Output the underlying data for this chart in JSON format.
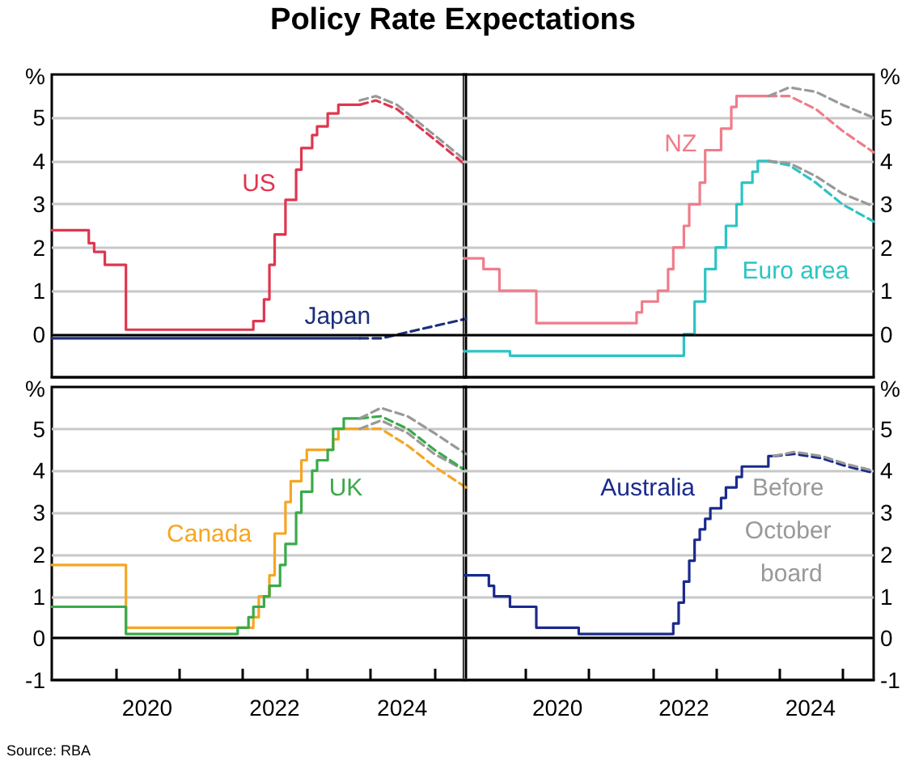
{
  "chart_data": [
    {
      "type": "line",
      "title": "Policy Rate Expectations",
      "ylabel": "%",
      "marker": "none",
      "grid": "y",
      "tick_labels": "y",
      "xlim": [
        "2019-01",
        "2025-07"
      ],
      "ylim": [
        -1,
        6
      ],
      "yticks": [
        0,
        1,
        2,
        3,
        4,
        5
      ],
      "ref_lines": [
        {
          "axis": "y",
          "value": 0,
          "color": "#000000"
        }
      ],
      "series": [
        {
          "name": "US",
          "type": "step",
          "color": "#e0354f",
          "x": [
            "2019-01",
            "2019-08",
            "2019-09",
            "2019-11",
            "2020-03",
            "2022-03",
            "2022-05",
            "2022-06",
            "2022-07",
            "2022-09",
            "2022-11",
            "2022-12",
            "2023-02",
            "2023-03",
            "2023-05",
            "2023-07",
            "2023-11"
          ],
          "values": [
            2.4,
            2.1,
            1.9,
            1.6,
            0.1,
            0.3,
            0.8,
            1.6,
            2.3,
            3.1,
            3.8,
            4.3,
            4.6,
            4.8,
            5.1,
            5.3,
            5.3
          ]
        },
        {
          "type": "line",
          "line_style": "dashed",
          "color": "#e0354f",
          "x": [
            "2023-11",
            "2024-02",
            "2024-06",
            "2024-10",
            "2025-02",
            "2025-07"
          ],
          "values": [
            5.3,
            5.4,
            5.2,
            4.8,
            4.4,
            3.9
          ]
        },
        {
          "type": "line",
          "line_style": "dashed",
          "color": "#999999",
          "x": [
            "2023-11",
            "2024-02",
            "2024-06",
            "2024-10",
            "2025-02",
            "2025-07"
          ],
          "values": [
            5.4,
            5.5,
            5.3,
            4.9,
            4.5,
            4.0
          ]
        },
        {
          "name": "Japan",
          "type": "step",
          "color": "#1c2f7a",
          "x": [
            "2019-01",
            "2023-11"
          ],
          "values": [
            -0.1,
            -0.1
          ]
        },
        {
          "type": "line",
          "line_style": "dashed",
          "color": "#1c2f7a",
          "x": [
            "2023-11",
            "2024-03",
            "2024-10",
            "2025-07"
          ],
          "values": [
            -0.1,
            -0.1,
            0.1,
            0.35
          ]
        }
      ]
    },
    {
      "type": "line",
      "ylabel": "%",
      "marker": "none",
      "grid": "y",
      "tick_labels": "y",
      "xlim": [
        "2019-01",
        "2025-07"
      ],
      "ylim": [
        -1,
        6
      ],
      "yticks": [
        0,
        1,
        2,
        3,
        4,
        5
      ],
      "ref_lines": [
        {
          "axis": "y",
          "value": 0,
          "color": "#000000"
        }
      ],
      "series": [
        {
          "name": "NZ",
          "type": "step",
          "color": "#f07c8a",
          "x": [
            "2019-01",
            "2019-05",
            "2019-08",
            "2020-03",
            "2021-10",
            "2021-11",
            "2022-02",
            "2022-04",
            "2022-05",
            "2022-07",
            "2022-08",
            "2022-10",
            "2022-11",
            "2023-02",
            "2023-04",
            "2023-05",
            "2023-11"
          ],
          "values": [
            1.75,
            1.5,
            1.0,
            0.25,
            0.5,
            0.75,
            1.0,
            1.5,
            2.0,
            2.5,
            3.0,
            3.5,
            4.25,
            4.75,
            5.25,
            5.5,
            5.5
          ]
        },
        {
          "type": "line",
          "line_style": "dashed",
          "color": "#f07c8a",
          "x": [
            "2023-11",
            "2024-03",
            "2024-08",
            "2025-01",
            "2025-07"
          ],
          "values": [
            5.5,
            5.5,
            5.2,
            4.7,
            4.2
          ]
        },
        {
          "type": "line",
          "line_style": "dashed",
          "color": "#999999",
          "x": [
            "2023-11",
            "2024-03",
            "2024-08",
            "2025-01",
            "2025-07"
          ],
          "values": [
            5.5,
            5.7,
            5.6,
            5.3,
            5.0
          ]
        },
        {
          "name": "Euro area",
          "type": "step",
          "color": "#2cc4c4",
          "x": [
            "2019-01",
            "2019-10",
            "2022-07",
            "2022-09",
            "2022-11",
            "2023-01",
            "2023-03",
            "2023-05",
            "2023-06",
            "2023-08",
            "2023-09",
            "2023-11"
          ],
          "values": [
            -0.4,
            -0.5,
            0,
            0.75,
            1.5,
            2.0,
            2.5,
            3.0,
            3.5,
            3.75,
            4.0,
            4.0
          ]
        },
        {
          "type": "line",
          "line_style": "dashed",
          "color": "#2cc4c4",
          "x": [
            "2023-11",
            "2024-03",
            "2024-08",
            "2025-01",
            "2025-07"
          ],
          "values": [
            4.0,
            3.9,
            3.5,
            3.0,
            2.6
          ]
        },
        {
          "type": "line",
          "line_style": "dashed",
          "color": "#999999",
          "x": [
            "2023-11",
            "2024-03",
            "2024-08",
            "2025-01",
            "2025-07"
          ],
          "values": [
            4.0,
            3.95,
            3.65,
            3.25,
            2.95
          ]
        }
      ]
    },
    {
      "type": "line",
      "ylabel": "%",
      "marker": "none",
      "grid": "y",
      "annotations": [
        "Source: RBA"
      ],
      "xlim": [
        "2019-01",
        "2025-07"
      ],
      "ylim": [
        -1,
        6
      ],
      "yticks": [
        -1,
        0,
        1,
        2,
        3,
        4,
        5
      ],
      "xticks": [
        {
          "value": "2020-01",
          "label": null
        },
        {
          "value": "2020-07",
          "label": "2020"
        },
        {
          "value": "2021-01",
          "label": null
        },
        {
          "value": "2022-01",
          "label": null
        },
        {
          "value": "2022-07",
          "label": "2022"
        },
        {
          "value": "2023-01",
          "label": null
        },
        {
          "value": "2024-01",
          "label": null
        },
        {
          "value": "2024-07",
          "label": "2024"
        },
        {
          "value": "2025-01",
          "label": null
        }
      ],
      "ref_lines": [
        {
          "axis": "y",
          "value": 0,
          "color": "#000000"
        }
      ],
      "series": [
        {
          "name": "Canada",
          "type": "step",
          "color": "#f5a623",
          "x": [
            "2019-01",
            "2020-03",
            "2022-03",
            "2022-04",
            "2022-06",
            "2022-07",
            "2022-09",
            "2022-10",
            "2022-12",
            "2023-01",
            "2023-06",
            "2023-07",
            "2023-11"
          ],
          "values": [
            1.75,
            0.25,
            0.5,
            1.0,
            1.5,
            2.5,
            3.25,
            3.75,
            4.25,
            4.5,
            4.75,
            5.0,
            5.0
          ]
        },
        {
          "type": "line",
          "line_style": "dashed",
          "color": "#f5a623",
          "x": [
            "2023-11",
            "2024-03",
            "2024-08",
            "2025-01",
            "2025-07"
          ],
          "values": [
            5.0,
            5.0,
            4.6,
            4.1,
            3.6
          ]
        },
        {
          "type": "line",
          "line_style": "dashed",
          "color": "#999999",
          "x": [
            "2023-11",
            "2024-03",
            "2024-08",
            "2025-01",
            "2025-07"
          ],
          "values": [
            5.0,
            5.2,
            4.9,
            4.4,
            4.0
          ]
        },
        {
          "name": "UK",
          "type": "step",
          "color": "#3aaa4a",
          "x": [
            "2019-01",
            "2020-03",
            "2021-12",
            "2022-02",
            "2022-03",
            "2022-05",
            "2022-06",
            "2022-08",
            "2022-09",
            "2022-11",
            "2022-12",
            "2023-02",
            "2023-03",
            "2023-05",
            "2023-06",
            "2023-08",
            "2023-11"
          ],
          "values": [
            0.75,
            0.1,
            0.25,
            0.5,
            0.75,
            1.0,
            1.25,
            1.75,
            2.25,
            3.0,
            3.5,
            4.0,
            4.25,
            4.5,
            5.0,
            5.25,
            5.25
          ]
        },
        {
          "type": "line",
          "line_style": "dashed",
          "color": "#3aaa4a",
          "x": [
            "2023-11",
            "2024-03",
            "2024-08",
            "2025-01",
            "2025-07"
          ],
          "values": [
            5.25,
            5.3,
            5.0,
            4.5,
            4.0
          ]
        },
        {
          "type": "line",
          "line_style": "dashed",
          "color": "#999999",
          "x": [
            "2023-11",
            "2024-03",
            "2024-08",
            "2025-01",
            "2025-07"
          ],
          "values": [
            5.25,
            5.5,
            5.3,
            4.9,
            4.4
          ]
        }
      ]
    },
    {
      "type": "line",
      "ylabel": "%",
      "marker": "none",
      "grid": "y",
      "xlim": [
        "2019-01",
        "2025-07"
      ],
      "ylim": [
        -1,
        6
      ],
      "yticks": [
        -1,
        0,
        1,
        2,
        3,
        4,
        5
      ],
      "xticks": [
        {
          "value": "2020-01",
          "label": null
        },
        {
          "value": "2020-07",
          "label": "2020"
        },
        {
          "value": "2021-01",
          "label": null
        },
        {
          "value": "2022-01",
          "label": null
        },
        {
          "value": "2022-07",
          "label": "2022"
        },
        {
          "value": "2023-01",
          "label": null
        },
        {
          "value": "2024-01",
          "label": null
        },
        {
          "value": "2024-07",
          "label": "2024"
        },
        {
          "value": "2025-01",
          "label": null
        }
      ],
      "ref_lines": [
        {
          "axis": "y",
          "value": 0,
          "color": "#000000"
        }
      ],
      "series": [
        {
          "name": "Australia",
          "type": "step",
          "color": "#1a2a8c",
          "x": [
            "2019-01",
            "2019-06",
            "2019-07",
            "2019-10",
            "2020-03",
            "2020-11",
            "2022-05",
            "2022-06",
            "2022-07",
            "2022-08",
            "2022-09",
            "2022-10",
            "2022-11",
            "2022-12",
            "2023-02",
            "2023-03",
            "2023-05",
            "2023-06",
            "2023-11",
            "2023-12"
          ],
          "values": [
            1.5,
            1.25,
            1.0,
            0.75,
            0.25,
            0.1,
            0.35,
            0.85,
            1.35,
            1.85,
            2.35,
            2.6,
            2.85,
            3.1,
            3.35,
            3.6,
            3.85,
            4.1,
            4.35,
            4.35
          ]
        },
        {
          "type": "line",
          "line_style": "dashed",
          "color": "#1a2a8c",
          "x": [
            "2023-12",
            "2024-04",
            "2024-09",
            "2025-02",
            "2025-07"
          ],
          "values": [
            4.35,
            4.4,
            4.3,
            4.1,
            3.95
          ]
        },
        {
          "name": "Before October board",
          "type": "line",
          "line_style": "dashed",
          "color": "#999999",
          "x": [
            "2023-12",
            "2024-04",
            "2024-09",
            "2025-02",
            "2025-07"
          ],
          "values": [
            4.35,
            4.45,
            4.35,
            4.15,
            4.0
          ]
        }
      ]
    }
  ]
}
